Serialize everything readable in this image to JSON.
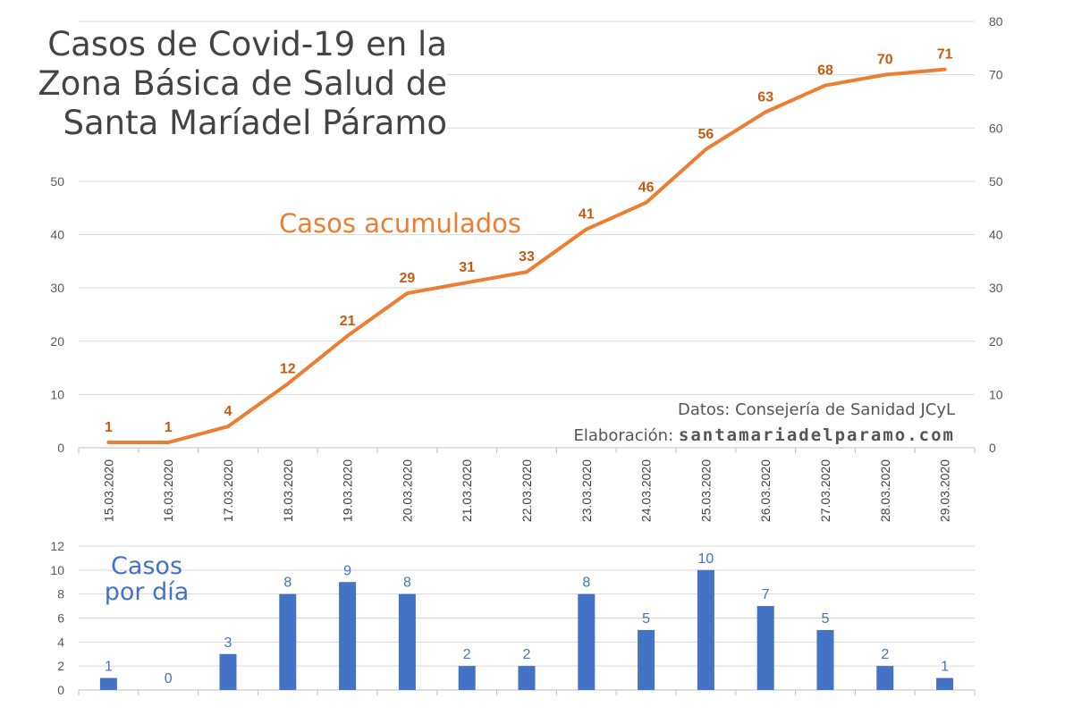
{
  "title_lines": [
    "Casos de Covid-19 en la",
    "Zona Básica de Salud de",
    "Santa Maríadel Páramo"
  ],
  "credits": {
    "source": "Datos: Consejería de Sanidad JCyL",
    "made_by_prefix": "Elaboración: ",
    "made_by_site": "santamariadelparamo.com"
  },
  "colors": {
    "cumulative": "#ed7d31",
    "cumulative_labels": "#c55a11",
    "daily": "#4472c4",
    "grid": "#d9d9d9",
    "axis_text": "#595959"
  },
  "chart_data": [
    {
      "type": "line",
      "name": "Casos acumulados",
      "x": [
        "15.03.2020",
        "16.03.2020",
        "17.03.2020",
        "18.03.2020",
        "19.03.2020",
        "20.03.2020",
        "21.03.2020",
        "22.03.2020",
        "23.03.2020",
        "24.03.2020",
        "25.03.2020",
        "26.03.2020",
        "27.03.2020",
        "28.03.2020",
        "29.03.2020"
      ],
      "values": [
        1,
        1,
        4,
        12,
        21,
        29,
        31,
        33,
        41,
        46,
        56,
        63,
        68,
        70,
        71
      ],
      "y_left_ticks": [
        0,
        10,
        20,
        30,
        40,
        50
      ],
      "y_right_ticks": [
        0,
        10,
        20,
        30,
        40,
        50,
        60,
        70,
        80
      ],
      "ylim": [
        0,
        80
      ],
      "grid": true,
      "data_labels": true
    },
    {
      "type": "bar",
      "name": "Casos por día",
      "label_lines": [
        "Casos",
        "por día"
      ],
      "categories": [
        "15.03.2020",
        "16.03.2020",
        "17.03.2020",
        "18.03.2020",
        "19.03.2020",
        "20.03.2020",
        "21.03.2020",
        "22.03.2020",
        "23.03.2020",
        "24.03.2020",
        "25.03.2020",
        "26.03.2020",
        "27.03.2020",
        "28.03.2020",
        "29.03.2020"
      ],
      "values": [
        1,
        0,
        3,
        8,
        9,
        8,
        2,
        2,
        8,
        5,
        10,
        7,
        5,
        2,
        1
      ],
      "y_ticks": [
        0,
        2,
        4,
        6,
        8,
        10,
        12
      ],
      "ylim": [
        0,
        12
      ],
      "grid": true,
      "data_labels": true
    }
  ]
}
